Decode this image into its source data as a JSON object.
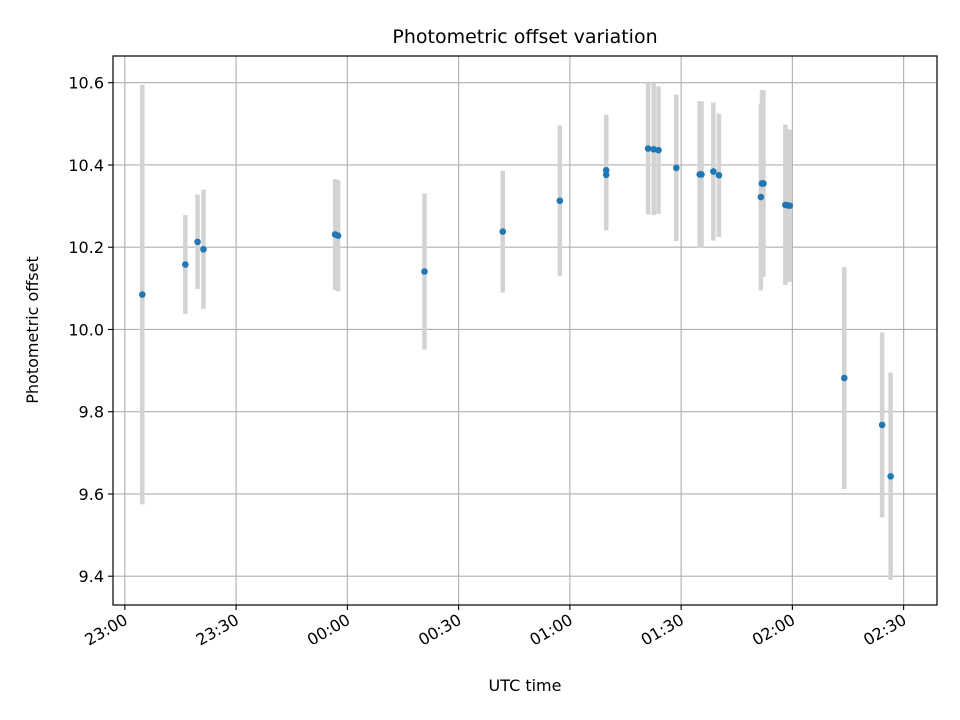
{
  "chart_data": {
    "type": "scatter",
    "title": "Photometric offset variation",
    "xlabel": "UTC time",
    "ylabel": "Photometric offset",
    "grid": true,
    "xlim": [
      -3.2,
      219.0
    ],
    "ylim": [
      9.33,
      10.665
    ],
    "x_unit": "minutes from 23:00",
    "xticks": [
      {
        "value": 0,
        "label": "23:00"
      },
      {
        "value": 30,
        "label": "23:30"
      },
      {
        "value": 60,
        "label": "00:00"
      },
      {
        "value": 90,
        "label": "00:30"
      },
      {
        "value": 120,
        "label": "01:00"
      },
      {
        "value": 150,
        "label": "01:30"
      },
      {
        "value": 180,
        "label": "02:00"
      },
      {
        "value": 210,
        "label": "02:30"
      }
    ],
    "yticks": [
      9.4,
      9.6,
      9.8,
      10.0,
      10.2,
      10.4,
      10.6
    ],
    "colors": {
      "marker": "#1f77b4",
      "errorbar": "#d3d3d3",
      "grid": "#b0b0b0"
    },
    "series": [
      {
        "x": [
          4.7,
          16.3,
          19.6,
          21.2,
          56.7,
          57.5,
          80.8,
          101.9,
          117.3,
          129.8,
          129.8,
          141.1,
          142.6,
          143.9,
          148.7,
          155.0,
          155.5,
          158.7,
          160.2,
          171.5,
          171.8,
          172.2,
          178.1,
          178.7,
          179.3,
          194.0,
          204.2,
          206.5
        ],
        "y": [
          10.085,
          10.158,
          10.213,
          10.195,
          10.231,
          10.228,
          10.141,
          10.238,
          10.313,
          10.376,
          10.387,
          10.44,
          10.438,
          10.436,
          10.393,
          10.377,
          10.377,
          10.384,
          10.375,
          10.322,
          10.355,
          10.355,
          10.303,
          10.302,
          10.301,
          9.882,
          9.768,
          9.643
        ],
        "err": [
          0.51,
          0.12,
          0.115,
          0.145,
          0.135,
          0.135,
          0.19,
          0.148,
          0.183,
          0.135,
          0.135,
          0.16,
          0.16,
          0.155,
          0.178,
          0.178,
          0.178,
          0.168,
          0.15,
          0.227,
          0.227,
          0.227,
          0.195,
          0.185,
          0.185,
          0.27,
          0.225,
          0.252
        ]
      }
    ]
  }
}
